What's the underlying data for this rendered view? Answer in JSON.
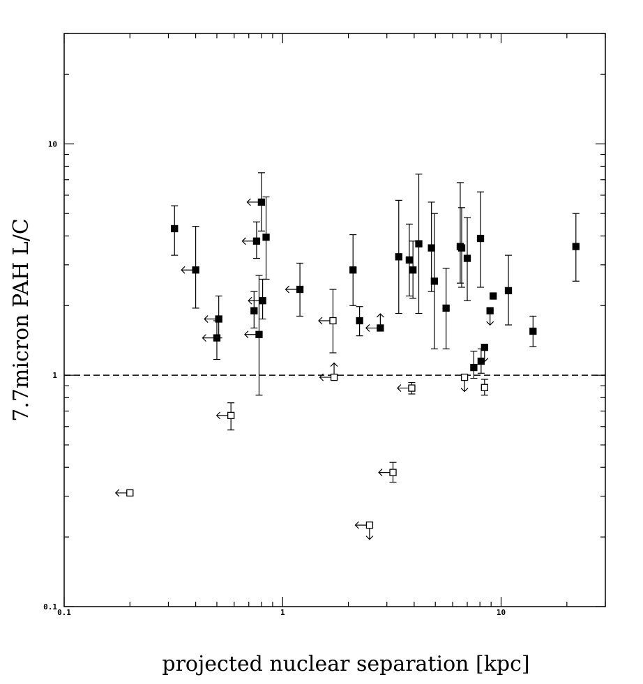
{
  "chart_data": {
    "type": "scatter",
    "title": "",
    "xlabel": "projected nuclear separation [kpc]",
    "ylabel": "7.7micron PAH L/C",
    "xscale": "log",
    "yscale": "log",
    "xlim": [
      0.1,
      30
    ],
    "ylim": [
      0.1,
      30
    ],
    "x_tick_labels": [
      {
        "value": 0.1,
        "label": "0.1"
      },
      {
        "value": 1,
        "label": "1"
      },
      {
        "value": 10,
        "label": "10"
      }
    ],
    "y_tick_labels": [
      {
        "value": 0.1,
        "label": "0.1"
      },
      {
        "value": 1,
        "label": "1"
      },
      {
        "value": 10,
        "label": "10"
      }
    ],
    "reference_line": {
      "y": 1,
      "style": "dashed"
    },
    "grid": false,
    "legend": "none",
    "marker_legend": {
      "filled": "filled square",
      "open": "open square"
    },
    "points": [
      {
        "x": 0.32,
        "y": 4.3,
        "ylo": 3.3,
        "yhi": 5.4,
        "filled": true
      },
      {
        "x": 0.4,
        "y": 2.85,
        "ylo": 1.95,
        "yhi": 4.4,
        "filled": true,
        "xlimit": "upper"
      },
      {
        "x": 0.5,
        "y": 1.45,
        "ylo": 1.17,
        "yhi": 1.72,
        "filled": true,
        "xlimit": "upper"
      },
      {
        "x": 0.51,
        "y": 1.75,
        "ylo": 1.45,
        "yhi": 2.2,
        "filled": true,
        "xlimit": "upper"
      },
      {
        "x": 0.74,
        "y": 1.9,
        "ylo": 1.6,
        "yhi": 2.3,
        "filled": true
      },
      {
        "x": 0.76,
        "y": 3.8,
        "ylo": 3.2,
        "yhi": 4.6,
        "filled": true,
        "xlimit": "upper"
      },
      {
        "x": 0.78,
        "y": 1.5,
        "ylo": 0.82,
        "yhi": 2.7,
        "filled": true,
        "xlimit": "upper"
      },
      {
        "x": 0.8,
        "y": 5.6,
        "ylo": 4.2,
        "yhi": 7.5,
        "filled": true,
        "xlimit": "upper"
      },
      {
        "x": 0.81,
        "y": 2.1,
        "ylo": 1.75,
        "yhi": 2.6,
        "filled": true,
        "xlimit": "upper"
      },
      {
        "x": 0.84,
        "y": 3.95,
        "ylo": 2.6,
        "yhi": 5.9,
        "filled": true
      },
      {
        "x": 1.2,
        "y": 2.35,
        "ylo": 1.8,
        "yhi": 3.05,
        "filled": true,
        "xlimit": "upper"
      },
      {
        "x": 2.1,
        "y": 2.85,
        "ylo": 2.0,
        "yhi": 4.05,
        "filled": true
      },
      {
        "x": 2.25,
        "y": 1.72,
        "ylo": 1.48,
        "yhi": 1.98,
        "filled": true
      },
      {
        "x": 2.8,
        "y": 1.6,
        "filled": true,
        "xlimit": "upper",
        "ylimit": "lower"
      },
      {
        "x": 3.4,
        "y": 3.25,
        "ylo": 1.85,
        "yhi": 5.7,
        "filled": true
      },
      {
        "x": 3.8,
        "y": 3.15,
        "ylo": 2.2,
        "yhi": 4.5,
        "filled": true
      },
      {
        "x": 3.95,
        "y": 2.85,
        "ylo": 2.15,
        "yhi": 3.8,
        "filled": true
      },
      {
        "x": 4.2,
        "y": 3.7,
        "ylo": 1.85,
        "yhi": 7.4,
        "filled": true
      },
      {
        "x": 4.8,
        "y": 3.55,
        "ylo": 2.3,
        "yhi": 5.6,
        "filled": true
      },
      {
        "x": 4.95,
        "y": 2.55,
        "ylo": 1.3,
        "yhi": 5.0,
        "filled": true
      },
      {
        "x": 5.6,
        "y": 1.95,
        "ylo": 1.3,
        "yhi": 2.9,
        "filled": true
      },
      {
        "x": 6.5,
        "y": 3.6,
        "ylo": 2.5,
        "yhi": 6.8,
        "filled": true
      },
      {
        "x": 6.6,
        "y": 3.55,
        "ylo": 2.4,
        "yhi": 5.3,
        "filled": true
      },
      {
        "x": 7.0,
        "y": 3.2,
        "ylo": 2.1,
        "yhi": 4.8,
        "filled": true
      },
      {
        "x": 7.5,
        "y": 1.08,
        "ylo": 0.97,
        "yhi": 1.27,
        "filled": true
      },
      {
        "x": 8.05,
        "y": 3.9,
        "ylo": 2.4,
        "yhi": 6.2,
        "filled": true
      },
      {
        "x": 8.1,
        "y": 1.15,
        "ylo": 1.02,
        "yhi": 1.3,
        "filled": true
      },
      {
        "x": 8.4,
        "y": 1.32,
        "filled": true,
        "ylimit": "upper"
      },
      {
        "x": 8.9,
        "y": 1.9,
        "filled": true,
        "ylimit": "upper"
      },
      {
        "x": 9.2,
        "y": 2.2,
        "filled": true
      },
      {
        "x": 10.8,
        "y": 2.32,
        "ylo": 1.65,
        "yhi": 3.3,
        "filled": true
      },
      {
        "x": 14.0,
        "y": 1.55,
        "ylo": 1.33,
        "yhi": 1.8,
        "filled": true
      },
      {
        "x": 22.0,
        "y": 3.6,
        "ylo": 2.55,
        "yhi": 5.0,
        "filled": true
      },
      {
        "x": 0.2,
        "y": 0.31,
        "filled": false,
        "xlimit": "upper"
      },
      {
        "x": 0.58,
        "y": 0.67,
        "ylo": 0.58,
        "yhi": 0.76,
        "filled": false,
        "xlimit": "upper"
      },
      {
        "x": 1.7,
        "y": 1.72,
        "ylo": 1.25,
        "yhi": 2.35,
        "filled": false,
        "xlimit": "upper"
      },
      {
        "x": 1.72,
        "y": 0.98,
        "filled": false,
        "xlimit": "upper",
        "ylimit": "lower"
      },
      {
        "x": 2.5,
        "y": 0.225,
        "filled": false,
        "xlimit": "upper",
        "ylimit": "upper"
      },
      {
        "x": 3.2,
        "y": 0.38,
        "ylo": 0.345,
        "yhi": 0.42,
        "filled": false,
        "xlimit": "upper"
      },
      {
        "x": 3.9,
        "y": 0.88,
        "ylo": 0.83,
        "yhi": 0.93,
        "filled": false,
        "xlimit": "upper"
      },
      {
        "x": 6.8,
        "y": 0.98,
        "filled": false,
        "ylimit": "upper"
      },
      {
        "x": 8.4,
        "y": 0.885,
        "ylo": 0.82,
        "yhi": 0.96,
        "filled": false
      }
    ]
  }
}
